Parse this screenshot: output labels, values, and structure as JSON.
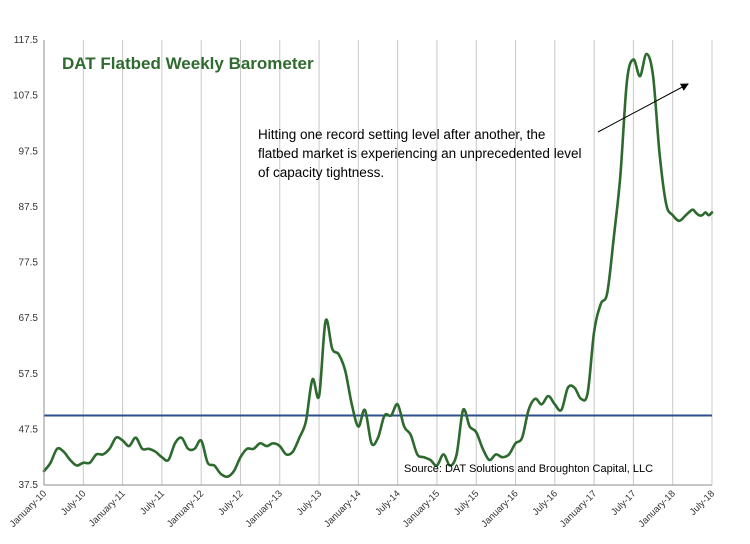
{
  "chart_data": {
    "type": "line",
    "title": "DAT Flatbed Weekly Barometer",
    "annotation": [
      "Hitting one record setting level after another, the",
      "flatbed market is experiencing an unprecedented level",
      "of capacity tightness."
    ],
    "source": "Source: DAT Solutions and Broughton Capital, LLC",
    "x_tick_labels": [
      "January-10",
      "July-10",
      "January-11",
      "July-11",
      "January-12",
      "July-12",
      "January-13",
      "July-13",
      "January-14",
      "July-14",
      "January-15",
      "July-15",
      "January-16",
      "July-16",
      "January-17",
      "July-17",
      "January-18",
      "July-18"
    ],
    "y_tick_labels": [
      "37.5",
      "47.5",
      "57.5",
      "67.5",
      "77.5",
      "87.5",
      "97.5",
      "107.5",
      "117.5"
    ],
    "ylim": [
      37.5,
      117.5
    ],
    "xlim": [
      0,
      102
    ],
    "grid": "vertical lines at each x tick",
    "reference_line": {
      "value": 50.0,
      "color": "#2e4f8f"
    },
    "series": [
      {
        "color": "#2d6a2d",
        "x": [
          0,
          1,
          2,
          3,
          4,
          5,
          6,
          7,
          8,
          9,
          10,
          11,
          12,
          13,
          14,
          15,
          16,
          17,
          18,
          19,
          20,
          21,
          22,
          23,
          24,
          25,
          26,
          27,
          28,
          29,
          30,
          31,
          32,
          33,
          34,
          35,
          36,
          37,
          38,
          39,
          40,
          41,
          42,
          43,
          44,
          45,
          46,
          47,
          48,
          49,
          50,
          51,
          52,
          53,
          54,
          55,
          56,
          57,
          58,
          59,
          60,
          61,
          62,
          63,
          64,
          65,
          66,
          67,
          68,
          69,
          70,
          71,
          72,
          73,
          74,
          75,
          76,
          77,
          78,
          79,
          80,
          81,
          82,
          83,
          84,
          85,
          86,
          87,
          88,
          89,
          90,
          91,
          92,
          93,
          94,
          95,
          96,
          97,
          98,
          99,
          99.5,
          100,
          100.5,
          101,
          101.5,
          102
        ],
        "values": [
          40.0,
          41.5,
          44.0,
          43.5,
          42.0,
          41.0,
          41.5,
          41.5,
          43.0,
          43.0,
          44.0,
          46.0,
          45.5,
          44.5,
          46.0,
          44.0,
          44.0,
          43.5,
          42.5,
          42.0,
          45.0,
          46.0,
          44.0,
          44.0,
          45.5,
          41.5,
          41.0,
          39.5,
          39.0,
          40.0,
          42.5,
          44.0,
          44.0,
          45.0,
          44.5,
          45.0,
          44.5,
          43.0,
          43.5,
          46.0,
          49.0,
          56.5,
          53.5,
          67.0,
          62.0,
          61.0,
          58.0,
          52.0,
          48.0,
          51.0,
          45.0,
          46.0,
          50.0,
          50.0,
          52.0,
          48.0,
          46.5,
          43.0,
          42.5,
          42.0,
          41.0,
          43.0,
          41.0,
          43.0,
          51.0,
          48.0,
          47.0,
          44.0,
          42.0,
          43.0,
          42.5,
          43.0,
          45.0,
          46.0,
          51.0,
          53.0,
          52.0,
          53.5,
          52.0,
          51.0,
          55.0,
          55.0,
          53.0,
          54.0,
          65.0,
          70.0,
          72.0,
          82.0,
          93.0,
          110.0,
          114.0,
          111.0,
          115.0,
          111.0,
          97.0,
          88.0,
          86.0,
          85.0,
          86.0,
          87.0,
          86.5,
          86.0,
          86.0,
          86.5,
          86.0,
          86.5
        ],
        "values_note": "Weekly readings approximated; rightmost endpoint ~86"
      }
    ]
  }
}
